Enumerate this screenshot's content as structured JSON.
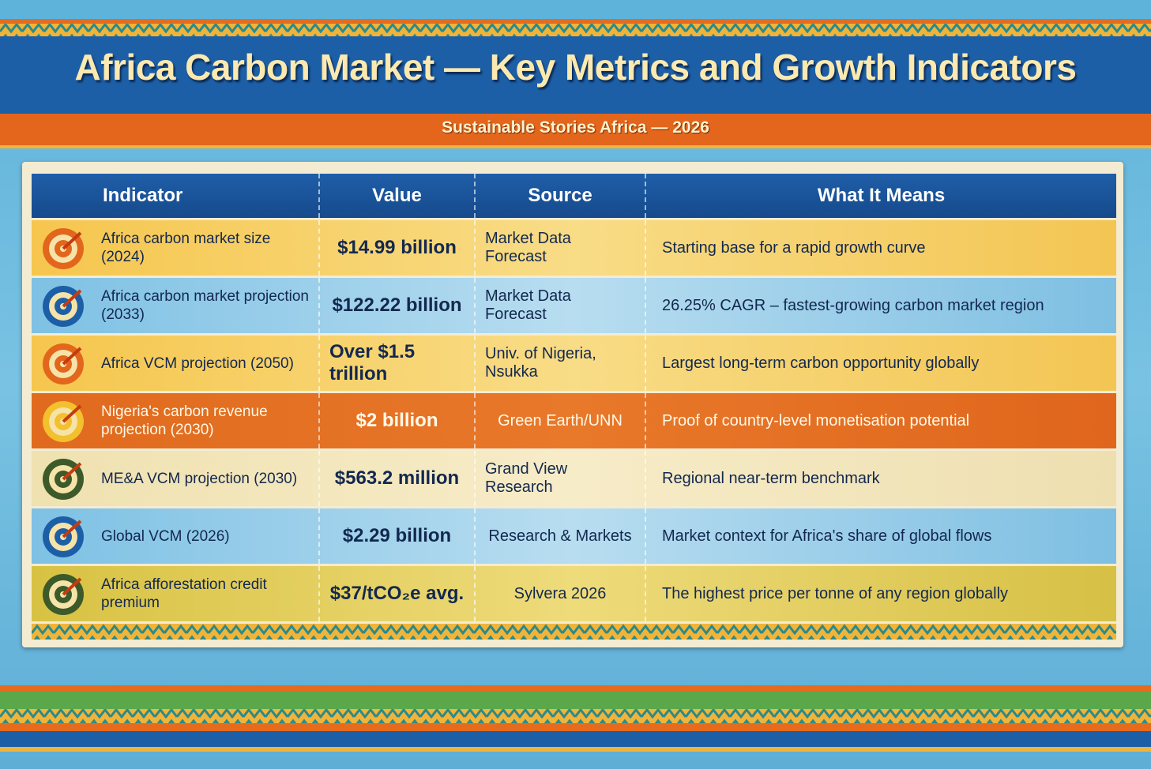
{
  "header": {
    "title": "Africa Carbon Market — Key Metrics and Growth Indicators",
    "subtitle": "Sustainable Stories Africa — 2026"
  },
  "table": {
    "columns": [
      "Indicator",
      "Value",
      "Source",
      "What It Means"
    ],
    "rows": [
      [
        "Africa carbon market size (2024)",
        "$14.99 billion",
        "Market Data Forecast",
        "Starting base for a rapid growth curve"
      ],
      [
        "Africa carbon market projection (2033)",
        "$122.22 billion",
        "Market Data Forecast",
        "26.25% CAGR – fastest-growing carbon market region"
      ],
      [
        "Africa VCM projection (2050)",
        "Over $1.5 trillion",
        "Univ. of Nigeria, Nsukka",
        "Largest long-term carbon opportunity globally"
      ],
      [
        "Nigeria's carbon revenue projection (2030)",
        "$2 billion",
        "Green Earth/UNN",
        "Proof of country-level monetisation potential"
      ],
      [
        "ME&A VCM projection (2030)",
        "$563.2 million",
        "Grand View Research",
        "Regional near-term benchmark"
      ],
      [
        "Global VCM (2026)",
        "$2.29 billion",
        "Research & Markets",
        "Market context for Africa's share of global flows"
      ],
      [
        "Africa afforestation credit premium",
        "$37/tCO₂e avg.",
        "Sylvera 2026",
        "The highest price per tonne of any region globally"
      ]
    ]
  }
}
